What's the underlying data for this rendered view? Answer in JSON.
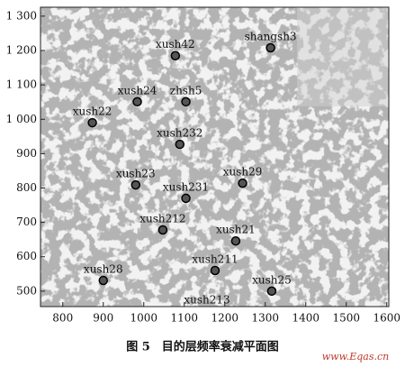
{
  "chart_data": {
    "type": "scatter",
    "labels": [
      "xush42",
      "shangsh3",
      "xush24",
      "zhsh5",
      "xush22",
      "xush232",
      "xush23",
      "xush29",
      "xush231",
      "xush212",
      "xush21",
      "xush211",
      "xush28",
      "xush25"
    ],
    "x": [
      1078,
      1313,
      984,
      1104,
      873,
      1089,
      980,
      1244,
      1104,
      1047,
      1227,
      1176,
      900,
      1316
    ],
    "y": [
      1185,
      1208,
      1051,
      1051,
      990,
      927,
      809,
      814,
      770,
      678,
      646,
      560,
      531,
      500
    ],
    "color": "#555555",
    "annotations": [
      "xush213"
    ],
    "xlim": [
      745,
      1605
    ],
    "xticks": [
      800,
      900,
      1000,
      1100,
      1200,
      1300,
      1400,
      1500,
      1600
    ],
    "ylim": [
      455,
      1326
    ],
    "yticks": [
      500,
      600,
      700,
      800,
      900,
      {
        "value": 1000,
        "label": "1 000"
      },
      {
        "value": 1100,
        "label": "1 100"
      },
      {
        "value": 1200,
        "label": "1 200"
      },
      {
        "value": 1300,
        "label": "1 300"
      }
    ]
  },
  "caption": "图 5　目的层频率衰减平面图",
  "watermark": "www.Eqas.cn"
}
